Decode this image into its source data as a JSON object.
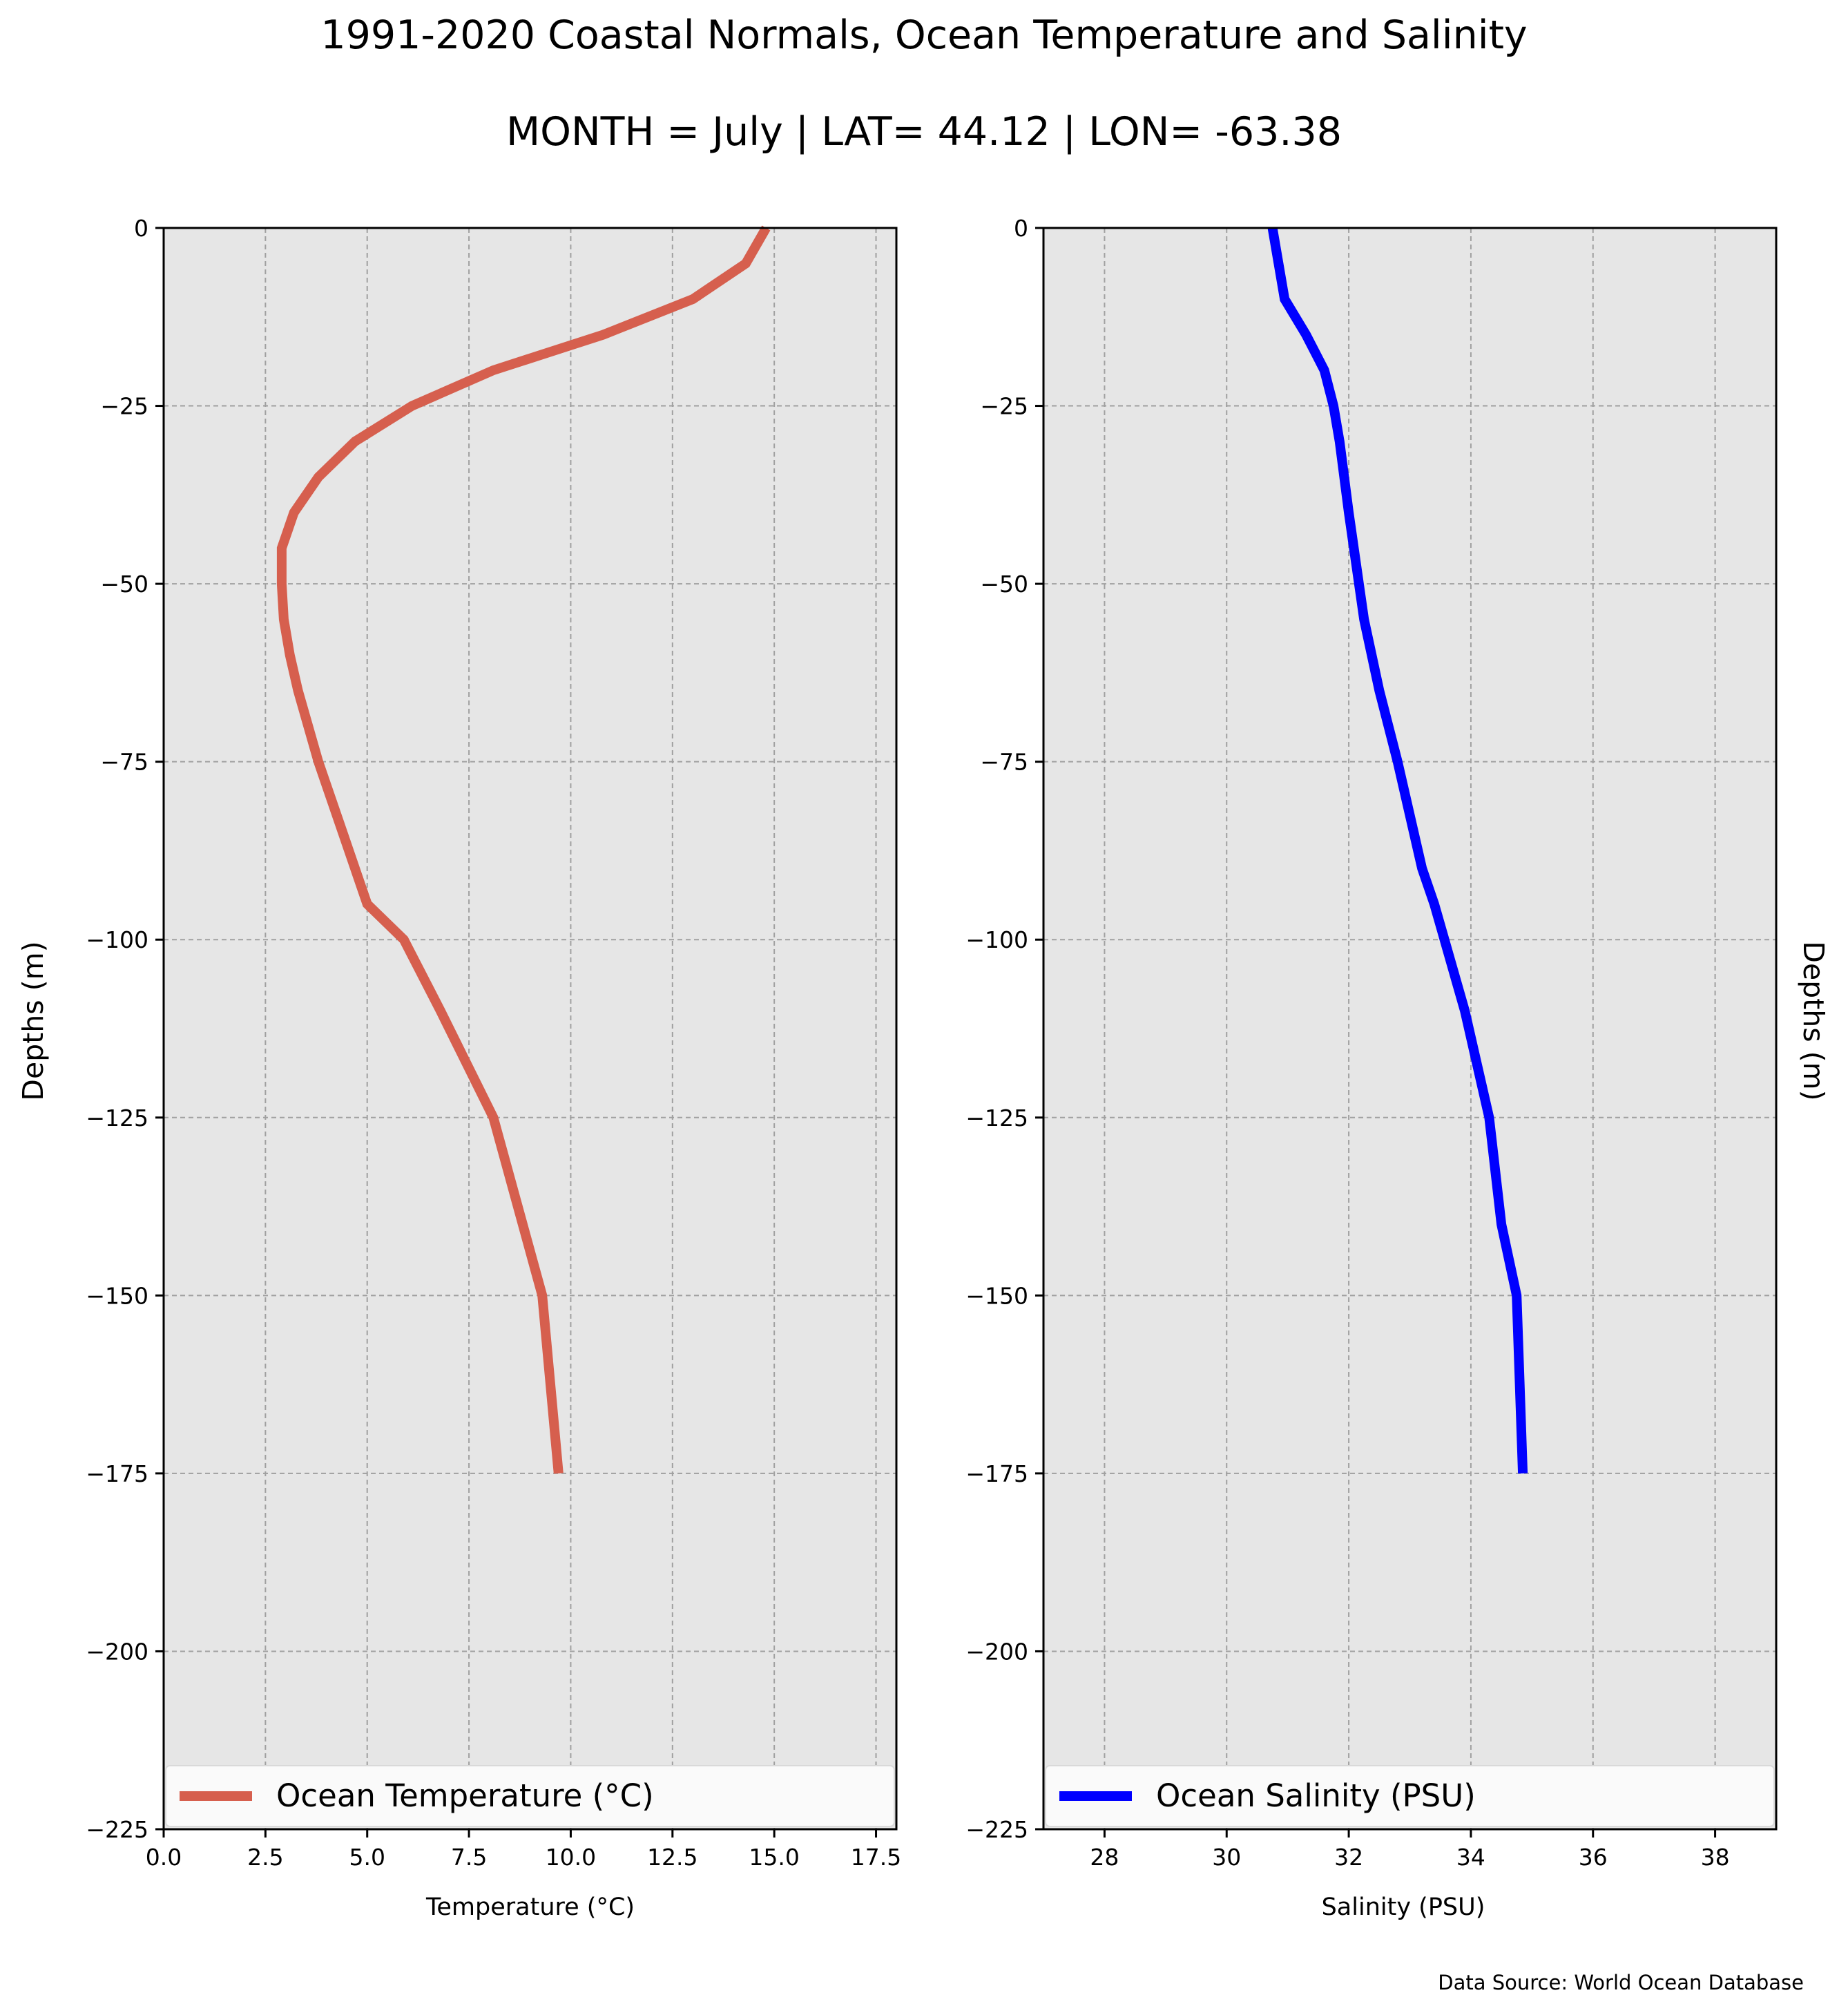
{
  "figure": {
    "title": "1991-2020 Coastal Normals, Ocean Temperature and Salinity",
    "subtitle": "MONTH = July | LAT= 44.12 | LON= -63.38",
    "source_note": "Data Source: World Ocean Database",
    "background": "#ffffff",
    "axes_facecolor": "#e6e6e6",
    "grid_color": "#a0a0a0"
  },
  "chart_data": [
    {
      "type": "line",
      "xlabel": "Temperature (°C)",
      "ylabel": "Depths (m)",
      "xlim": [
        0,
        18
      ],
      "ylim": [
        -225,
        0
      ],
      "xticks": [
        0.0,
        2.5,
        5.0,
        7.5,
        10.0,
        12.5,
        15.0,
        17.5
      ],
      "xtick_labels": [
        "0.0",
        "2.5",
        "5.0",
        "7.5",
        "10.0",
        "12.5",
        "15.0",
        "17.5"
      ],
      "yticks": [
        0,
        -25,
        -50,
        -75,
        -100,
        -125,
        -150,
        -175,
        -200,
        -225
      ],
      "ytick_labels": [
        "0",
        "−25",
        "−50",
        "−75",
        "−100",
        "−125",
        "−150",
        "−175",
        "−200",
        "−225"
      ],
      "grid": true,
      "legend": "lower-center",
      "series": [
        {
          "name": "Ocean Temperature (°C)",
          "color": "#d65f4e",
          "x": [
            14.8,
            14.3,
            13.0,
            10.8,
            8.1,
            6.1,
            4.7,
            3.8,
            3.2,
            2.9,
            2.9,
            2.95,
            3.1,
            3.3,
            3.8,
            4.4,
            5.0,
            5.9,
            6.8,
            8.1,
            9.3,
            9.7
          ],
          "y": [
            0,
            -5,
            -10,
            -15,
            -20,
            -25,
            -30,
            -35,
            -40,
            -45,
            -50,
            -55,
            -60,
            -65,
            -75,
            -85,
            -95,
            -100,
            -110,
            -125,
            -150,
            -175
          ]
        }
      ]
    },
    {
      "type": "line",
      "xlabel": "Salinity (PSU)",
      "ylabel": "Depths (m)",
      "xlim": [
        27,
        39
      ],
      "ylim": [
        -225,
        0
      ],
      "xticks": [
        28,
        30,
        32,
        34,
        36,
        38
      ],
      "xtick_labels": [
        "28",
        "30",
        "32",
        "34",
        "36",
        "38"
      ],
      "yticks": [
        0,
        -25,
        -50,
        -75,
        -100,
        -125,
        -150,
        -175,
        -200,
        -225
      ],
      "ytick_labels": [
        "0",
        "−25",
        "−50",
        "−75",
        "−100",
        "−125",
        "−150",
        "−175",
        "−200",
        "−225"
      ],
      "grid": true,
      "legend": "lower-center",
      "series": [
        {
          "name": "Ocean Salinity (PSU)",
          "color": "#0000ff",
          "x": [
            30.75,
            30.85,
            30.95,
            31.3,
            31.6,
            31.75,
            31.85,
            32.0,
            32.25,
            32.5,
            32.8,
            33.2,
            33.4,
            33.9,
            34.3,
            34.5,
            34.75,
            34.85
          ],
          "y": [
            0,
            -5,
            -10,
            -15,
            -20,
            -25,
            -30,
            -40,
            -55,
            -65,
            -75,
            -90,
            -95,
            -110,
            -125,
            -140,
            -150,
            -175
          ]
        }
      ]
    }
  ]
}
